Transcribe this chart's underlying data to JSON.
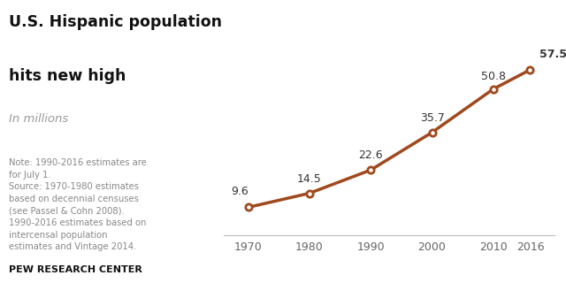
{
  "title_line1": "U.S. Hispanic population",
  "title_line2": "hits new high",
  "subtitle": "In millions",
  "years": [
    1970,
    1980,
    1990,
    2000,
    2010,
    2016
  ],
  "values": [
    9.6,
    14.5,
    22.6,
    35.7,
    50.8,
    57.5
  ],
  "labels": [
    "9.6",
    "14.5",
    "22.6",
    "35.7",
    "50.8",
    "57.5"
  ],
  "line_color": "#A0491E",
  "marker_face": "#ffffff",
  "marker_edge": "#A0491E",
  "note_text": "Note: 1990-2016 estimates are\nfor July 1.\nSource: 1970-1980 estimates\nbased on decennial censuses\n(see Passel & Cohn 2008).\n1990-2016 estimates based on\nintercensal population\nestimates and Vintage 2014.",
  "footer_text": "PEW RESEARCH CENTER",
  "bg_color": "#ffffff",
  "title_fontsize": 12.5,
  "subtitle_fontsize": 9.5,
  "label_fontsize": 9,
  "note_fontsize": 7.2,
  "footer_fontsize": 8,
  "tick_fontsize": 9,
  "label_color": "#333333",
  "note_color": "#888888",
  "footer_color": "#111111",
  "tick_color": "#666666",
  "spine_color": "#bbbbbb",
  "xlim_left": 1966,
  "xlim_right": 2020,
  "ylim_bottom": 0,
  "ylim_top": 68,
  "label_offsets_x": [
    0,
    0,
    0,
    0,
    0,
    1.5
  ],
  "label_offsets_y": [
    3.5,
    3.0,
    3.0,
    3.0,
    2.5,
    3.5
  ],
  "label_ha": [
    "right",
    "center",
    "center",
    "center",
    "center",
    "left"
  ],
  "label_bold": [
    false,
    false,
    false,
    false,
    false,
    true
  ]
}
